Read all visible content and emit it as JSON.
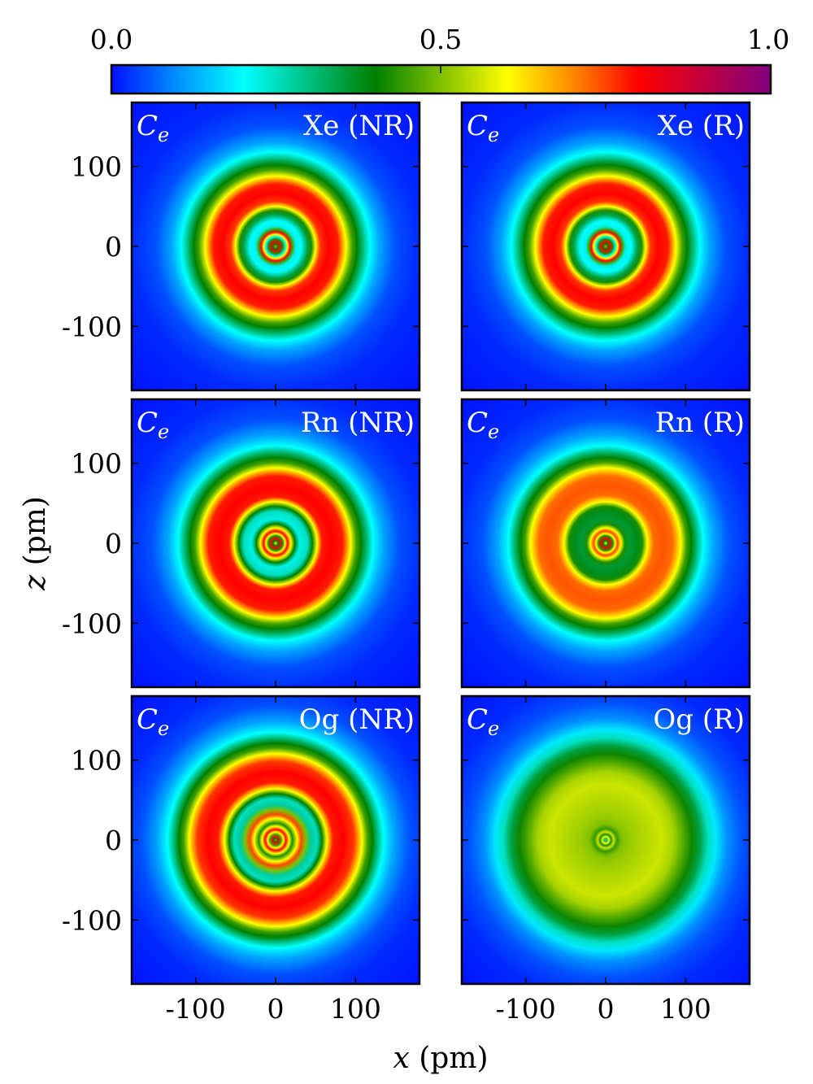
{
  "chart_data": {
    "type": "heatmap",
    "title": "",
    "quantity_label": "C",
    "quantity_subscript": "e",
    "xlabel_var": "x",
    "xlabel_unit": "(pm)",
    "ylabel_var": "z",
    "ylabel_unit": "(pm)",
    "xlim": [
      -180,
      180
    ],
    "ylim": [
      -180,
      180
    ],
    "xticks": [
      -100,
      0,
      100
    ],
    "xtick_labels": [
      "-100",
      "0",
      "100"
    ],
    "yticks": [
      100,
      0,
      -100
    ],
    "ytick_labels": [
      "100",
      "0",
      "-100"
    ],
    "colorbar": {
      "range": [
        0,
        1
      ],
      "ticks": [
        0,
        0.5,
        1
      ],
      "tick_labels": [
        "0.0",
        "0.5",
        "1.0"
      ],
      "placement": "top",
      "colormap_stops": [
        {
          "v": 0.0,
          "color": "#0010ff"
        },
        {
          "v": 0.1,
          "color": "#0090ff"
        },
        {
          "v": 0.2,
          "color": "#00ffff"
        },
        {
          "v": 0.4,
          "color": "#008000"
        },
        {
          "v": 0.6,
          "color": "#ffff00"
        },
        {
          "v": 0.7,
          "color": "#ff8800"
        },
        {
          "v": 0.8,
          "color": "#ff0000"
        },
        {
          "v": 0.9,
          "color": "#c00040"
        },
        {
          "v": 1.0,
          "color": "#800080"
        }
      ]
    },
    "panels": [
      {
        "label": "Xe (NR)",
        "radial_profile_pm": [
          [
            0,
            0.7
          ],
          [
            3,
            0.4
          ],
          [
            6,
            0.8
          ],
          [
            9,
            0.42
          ],
          [
            12,
            0.22
          ],
          [
            15,
            0.6
          ],
          [
            18,
            0.8
          ],
          [
            21,
            0.45
          ],
          [
            25,
            0.22
          ],
          [
            32,
            0.2
          ],
          [
            40,
            0.35
          ],
          [
            45,
            0.42
          ],
          [
            50,
            0.6
          ],
          [
            56,
            0.76
          ],
          [
            66,
            0.8
          ],
          [
            78,
            0.78
          ],
          [
            88,
            0.6
          ],
          [
            96,
            0.45
          ],
          [
            102,
            0.4
          ],
          [
            110,
            0.3
          ],
          [
            118,
            0.2
          ],
          [
            130,
            0.12
          ],
          [
            150,
            0.05
          ],
          [
            180,
            0.02
          ],
          [
            260,
            0.0
          ]
        ]
      },
      {
        "label": "Xe (R)",
        "radial_profile_pm": [
          [
            0,
            0.7
          ],
          [
            3,
            0.4
          ],
          [
            6,
            0.8
          ],
          [
            9,
            0.42
          ],
          [
            12,
            0.22
          ],
          [
            15,
            0.6
          ],
          [
            18,
            0.8
          ],
          [
            21,
            0.45
          ],
          [
            25,
            0.22
          ],
          [
            32,
            0.2
          ],
          [
            40,
            0.35
          ],
          [
            45,
            0.42
          ],
          [
            50,
            0.6
          ],
          [
            56,
            0.76
          ],
          [
            66,
            0.8
          ],
          [
            78,
            0.78
          ],
          [
            88,
            0.6
          ],
          [
            96,
            0.45
          ],
          [
            102,
            0.4
          ],
          [
            110,
            0.3
          ],
          [
            118,
            0.2
          ],
          [
            130,
            0.12
          ],
          [
            150,
            0.05
          ],
          [
            180,
            0.02
          ],
          [
            260,
            0.0
          ]
        ]
      },
      {
        "label": "Rn (NR)",
        "radial_profile_pm": [
          [
            0,
            0.6
          ],
          [
            3,
            0.4
          ],
          [
            6,
            0.8
          ],
          [
            9,
            0.42
          ],
          [
            12,
            0.6
          ],
          [
            15,
            0.8
          ],
          [
            19,
            0.6
          ],
          [
            24,
            0.4
          ],
          [
            30,
            0.22
          ],
          [
            40,
            0.25
          ],
          [
            46,
            0.4
          ],
          [
            52,
            0.6
          ],
          [
            58,
            0.78
          ],
          [
            70,
            0.8
          ],
          [
            84,
            0.78
          ],
          [
            94,
            0.6
          ],
          [
            101,
            0.45
          ],
          [
            107,
            0.4
          ],
          [
            115,
            0.3
          ],
          [
            122,
            0.2
          ],
          [
            135,
            0.12
          ],
          [
            155,
            0.05
          ],
          [
            185,
            0.02
          ],
          [
            260,
            0.0
          ]
        ]
      },
      {
        "label": "Rn (R)",
        "radial_profile_pm": [
          [
            0,
            0.6
          ],
          [
            3,
            0.4
          ],
          [
            6,
            0.8
          ],
          [
            9,
            0.42
          ],
          [
            12,
            0.6
          ],
          [
            15,
            0.75
          ],
          [
            19,
            0.6
          ],
          [
            24,
            0.42
          ],
          [
            30,
            0.36
          ],
          [
            40,
            0.38
          ],
          [
            46,
            0.42
          ],
          [
            52,
            0.6
          ],
          [
            60,
            0.72
          ],
          [
            72,
            0.74
          ],
          [
            84,
            0.72
          ],
          [
            94,
            0.6
          ],
          [
            101,
            0.45
          ],
          [
            107,
            0.4
          ],
          [
            115,
            0.3
          ],
          [
            122,
            0.2
          ],
          [
            135,
            0.12
          ],
          [
            155,
            0.05
          ],
          [
            185,
            0.02
          ],
          [
            260,
            0.0
          ]
        ]
      },
      {
        "label": "Og (NR)",
        "radial_profile_pm": [
          [
            0,
            0.7
          ],
          [
            2,
            0.4
          ],
          [
            4,
            0.8
          ],
          [
            7,
            0.45
          ],
          [
            10,
            0.6
          ],
          [
            13,
            0.8
          ],
          [
            17,
            0.6
          ],
          [
            21,
            0.42
          ],
          [
            27,
            0.6
          ],
          [
            32,
            0.75
          ],
          [
            38,
            0.5
          ],
          [
            44,
            0.28
          ],
          [
            52,
            0.25
          ],
          [
            58,
            0.4
          ],
          [
            64,
            0.6
          ],
          [
            72,
            0.78
          ],
          [
            85,
            0.8
          ],
          [
            98,
            0.76
          ],
          [
            108,
            0.6
          ],
          [
            115,
            0.45
          ],
          [
            121,
            0.4
          ],
          [
            128,
            0.3
          ],
          [
            135,
            0.2
          ],
          [
            148,
            0.12
          ],
          [
            168,
            0.05
          ],
          [
            195,
            0.02
          ],
          [
            260,
            0.0
          ]
        ]
      },
      {
        "label": "Og (R)",
        "radial_profile_pm": [
          [
            0,
            0.5
          ],
          [
            2,
            0.3
          ],
          [
            4,
            0.6
          ],
          [
            7,
            0.42
          ],
          [
            10,
            0.56
          ],
          [
            14,
            0.44
          ],
          [
            20,
            0.5
          ],
          [
            30,
            0.52
          ],
          [
            50,
            0.54
          ],
          [
            70,
            0.56
          ],
          [
            85,
            0.53
          ],
          [
            98,
            0.46
          ],
          [
            108,
            0.41
          ],
          [
            118,
            0.35
          ],
          [
            128,
            0.25
          ],
          [
            138,
            0.18
          ],
          [
            152,
            0.1
          ],
          [
            172,
            0.05
          ],
          [
            200,
            0.02
          ],
          [
            260,
            0.0
          ]
        ]
      }
    ]
  }
}
